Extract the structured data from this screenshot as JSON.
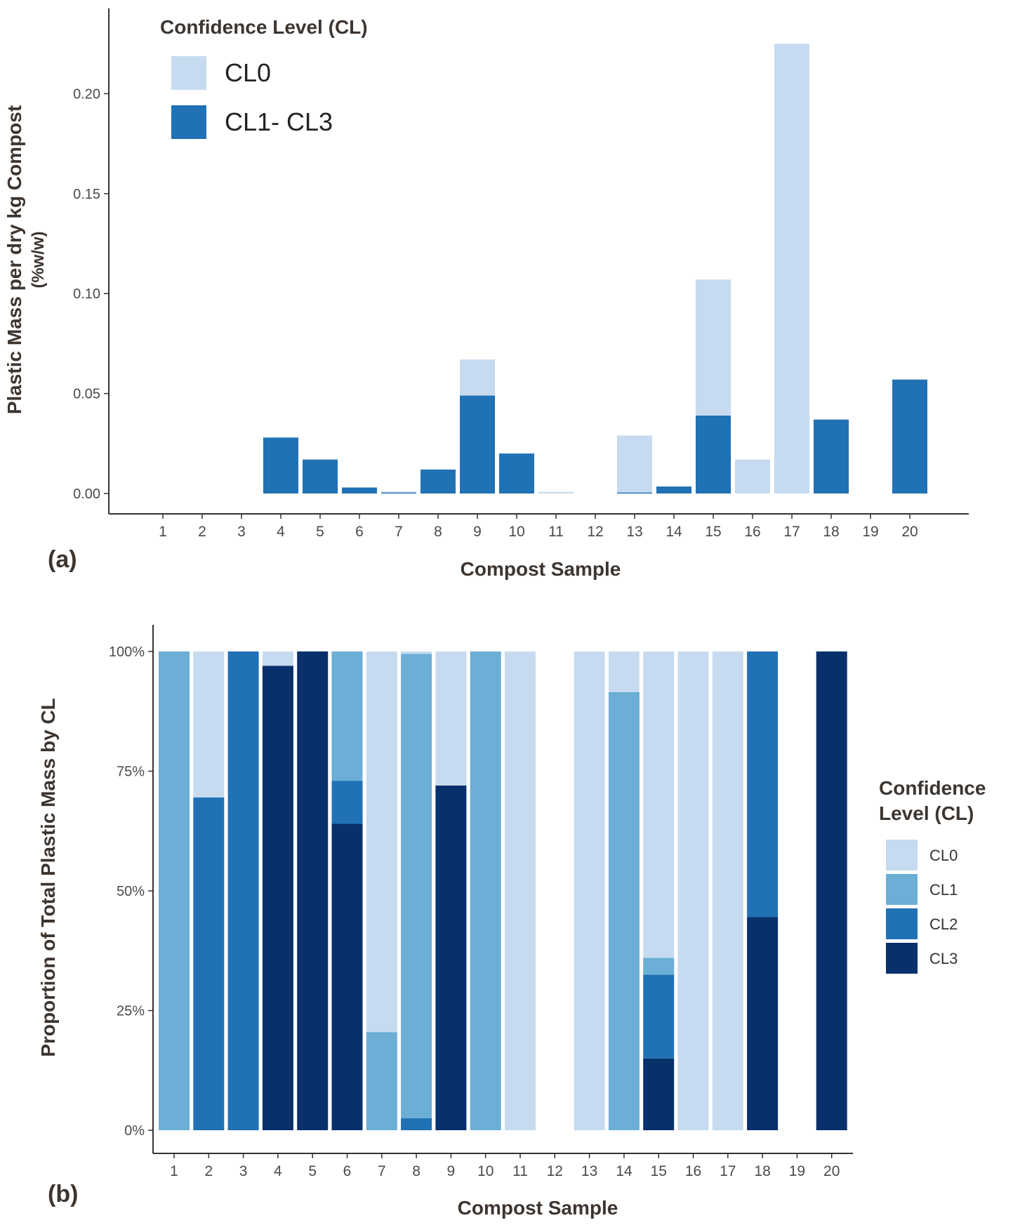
{
  "panel_a_label": "(a)",
  "panel_b_label": "(b)",
  "chart_data": [
    {
      "type": "bar",
      "stacked": true,
      "panel": "(a)",
      "title": "",
      "xlabel": "Compost Sample",
      "ylabel": "Plastic Mass per dry kg Compost",
      "ylabel_sub": "(%w/w)",
      "ylim": [
        0,
        0.23
      ],
      "yticks": [
        0.0,
        0.05,
        0.1,
        0.15,
        0.2
      ],
      "ytick_labels": [
        "0.00",
        "0.05",
        "0.10",
        "0.15",
        "0.20"
      ],
      "categories": [
        "1",
        "2",
        "3",
        "4",
        "5",
        "6",
        "7",
        "8",
        "9",
        "10",
        "11",
        "12",
        "13",
        "14",
        "15",
        "16",
        "17",
        "18",
        "19",
        "20"
      ],
      "legend": {
        "title": "Confidence Level (CL)",
        "position": "top-left inside",
        "entries": [
          {
            "label": "CL0",
            "color": "#c6dbef"
          },
          {
            "label": "CL1- CL3",
            "color": "#2171b5"
          }
        ]
      },
      "series": [
        {
          "name": "CL1- CL3",
          "color": "#2171b5",
          "values": [
            0,
            0,
            0,
            0.028,
            0.017,
            0.003,
            0.0005,
            0.012,
            0.049,
            0.02,
            0,
            0,
            0.0005,
            0.0035,
            0.039,
            0,
            0,
            0.037,
            0,
            0.057
          ]
        },
        {
          "name": "CL0",
          "color": "#c6dbef",
          "values": [
            0,
            0,
            0,
            0,
            0,
            0,
            0.0005,
            0,
            0.018,
            0,
            0.0008,
            0,
            0.0285,
            0,
            0.068,
            0.017,
            0.225,
            0,
            0,
            0
          ]
        }
      ]
    },
    {
      "type": "bar",
      "stacked": true,
      "panel": "(b)",
      "title": "",
      "xlabel": "Compost Sample",
      "ylabel": "Proportion of Total Plastic Mass by CL",
      "ylim": [
        0,
        100
      ],
      "yticks": [
        0,
        25,
        50,
        75,
        100
      ],
      "ytick_labels": [
        "0%",
        "25%",
        "50%",
        "75%",
        "100%"
      ],
      "categories": [
        "1",
        "2",
        "3",
        "4",
        "5",
        "6",
        "7",
        "8",
        "9",
        "10",
        "11",
        "12",
        "13",
        "14",
        "15",
        "16",
        "17",
        "18",
        "19",
        "20"
      ],
      "legend": {
        "title_lines": [
          "Confidence",
          "Level (CL)"
        ],
        "position": "right",
        "entries": [
          {
            "label": "CL0",
            "color": "#c6dbef"
          },
          {
            "label": "CL1",
            "color": "#6baed6"
          },
          {
            "label": "CL2",
            "color": "#2171b5"
          },
          {
            "label": "CL3",
            "color": "#08306b"
          }
        ]
      },
      "series": [
        {
          "name": "CL3",
          "color": "#08306b",
          "values": [
            0,
            0,
            0,
            97,
            100,
            64,
            0,
            0,
            72,
            0,
            0,
            0,
            0,
            0,
            15,
            0,
            0,
            44.5,
            0,
            100
          ]
        },
        {
          "name": "CL2",
          "color": "#2171b5",
          "values": [
            0,
            69.5,
            100,
            0,
            0,
            9,
            0,
            2.5,
            0,
            0,
            0,
            0,
            0,
            0,
            17.5,
            0,
            0,
            55.5,
            0,
            0
          ]
        },
        {
          "name": "CL1",
          "color": "#6baed6",
          "values": [
            100,
            0,
            0,
            0,
            0,
            27,
            20.5,
            97,
            0,
            100,
            0,
            0,
            0,
            91.5,
            3.5,
            0,
            0,
            0,
            0,
            0
          ]
        },
        {
          "name": "CL0",
          "color": "#c6dbef",
          "values": [
            0,
            30.5,
            0,
            3,
            0,
            0,
            79.5,
            0.5,
            28,
            0,
            100,
            0,
            100,
            8.5,
            64,
            100,
            100,
            0,
            0,
            0
          ]
        }
      ]
    }
  ]
}
